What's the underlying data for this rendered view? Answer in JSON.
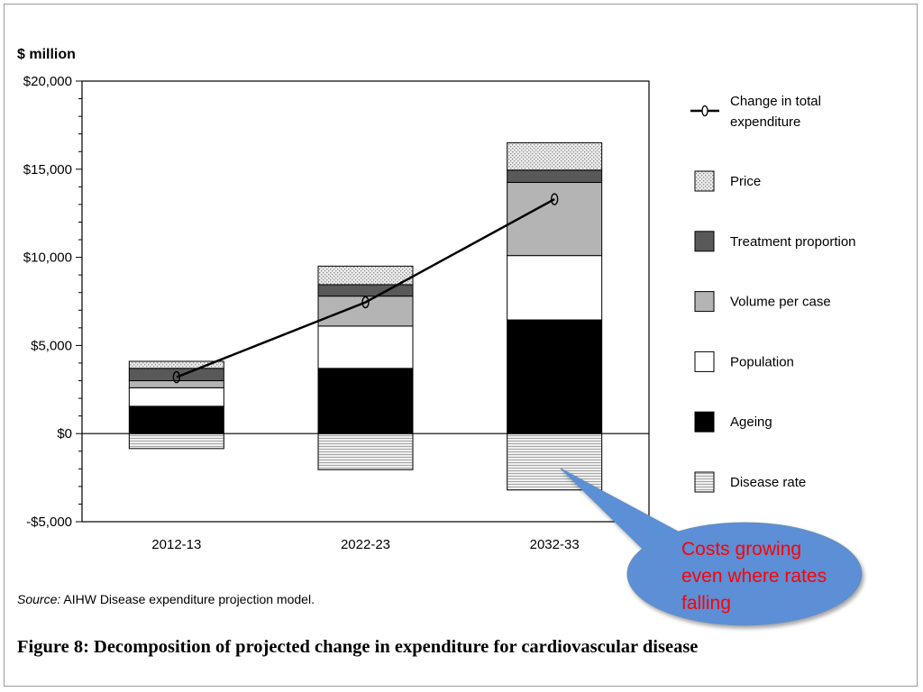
{
  "chart_data": {
    "type": "bar",
    "stacked": true,
    "ylabel": "$ million",
    "ylim": [
      -5000,
      20000
    ],
    "yticks": [
      -5000,
      0,
      5000,
      10000,
      15000,
      20000
    ],
    "ytick_labels": [
      "-$5,000",
      "$0",
      "$5,000",
      "$10,000",
      "$15,000",
      "$20,000"
    ],
    "categories": [
      "2012-13",
      "2022-23",
      "2032-33"
    ],
    "series": [
      {
        "name": "Ageing",
        "values": [
          1550,
          3700,
          6450
        ],
        "color": "#000000",
        "pattern": "solid"
      },
      {
        "name": "Population",
        "values": [
          1050,
          2400,
          3650
        ],
        "color": "#ffffff",
        "pattern": "solid"
      },
      {
        "name": "Volume per case",
        "values": [
          400,
          1700,
          4150
        ],
        "color": "#b4b4b4",
        "pattern": "solid"
      },
      {
        "name": "Treatment proportion",
        "values": [
          700,
          650,
          700
        ],
        "color": "#595959",
        "pattern": "solid"
      },
      {
        "name": "Price",
        "values": [
          400,
          1050,
          1550
        ],
        "color": "#e6e6e6",
        "pattern": "dots"
      },
      {
        "name": "Disease rate",
        "values": [
          -850,
          -2050,
          -3200
        ],
        "color": "#e6e6e6",
        "pattern": "lines"
      }
    ],
    "line_series": {
      "name": "Change in total expenditure",
      "values": [
        3200,
        7450,
        13300
      ],
      "marker": "0"
    },
    "legend": {
      "position": "right",
      "entries": [
        "Change in total expenditure",
        "Price",
        "Treatment proportion",
        "Volume per case",
        "Population",
        "Ageing",
        "Disease rate"
      ]
    },
    "annotation": {
      "text": [
        "Costs growing",
        "even where rates",
        "falling"
      ],
      "color": "#ff0000",
      "fill": "#5b8fd6"
    }
  },
  "source": {
    "label": "Source:",
    "text": "AIHW Disease expenditure projection model."
  },
  "caption": "Figure 8: Decomposition of projected change in expenditure for cardiovascular disease"
}
